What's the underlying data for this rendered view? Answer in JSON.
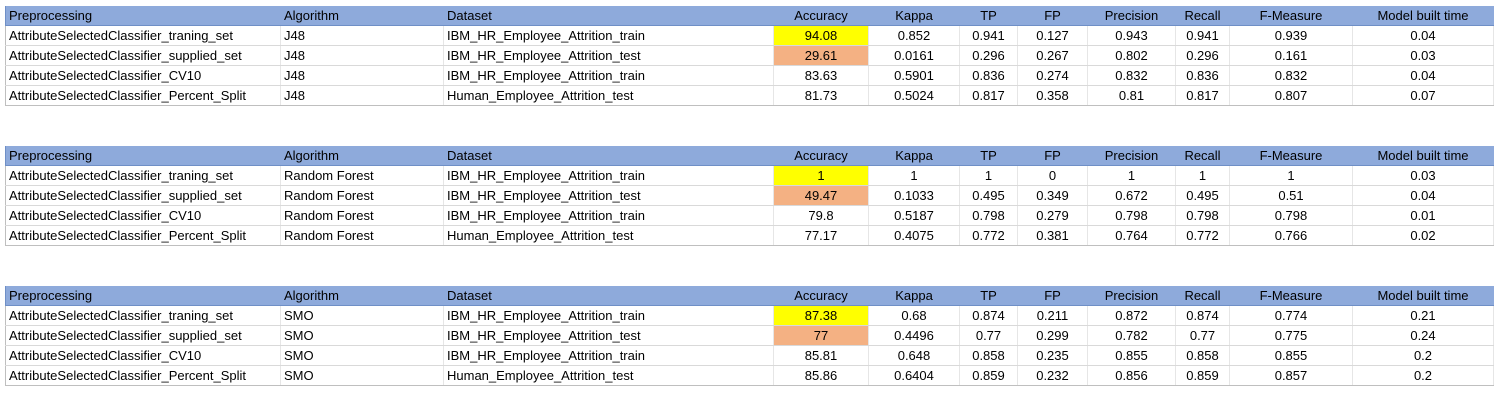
{
  "headers": {
    "preprocessing": "Preprocessing",
    "algorithm": "Algorithm",
    "dataset": "Dataset",
    "accuracy": "Accuracy",
    "kappa": "Kappa",
    "tp": "TP",
    "fp": "FP",
    "precision": "Precision",
    "recall": "Recall",
    "f_measure": "F-Measure",
    "model_built_time": "Model built time"
  },
  "colors": {
    "header_bg": "#8eaadb",
    "highlight_yellow": "#ffff00",
    "highlight_orange": "#f4b183"
  },
  "tables": [
    {
      "rows": [
        {
          "preprocessing": "AttributeSelectedClassifier_traning_set",
          "algorithm": "J48",
          "dataset": "IBM_HR_Employee_Attrition_train",
          "accuracy": "94.08",
          "accuracy_highlight": "yellow",
          "kappa": "0.852",
          "tp": "0.941",
          "fp": "0.127",
          "precision": "0.943",
          "recall": "0.941",
          "f_measure": "0.939",
          "model_built_time": "0.04"
        },
        {
          "preprocessing": "AttributeSelectedClassifier_supplied_set",
          "algorithm": "J48",
          "dataset": "IBM_HR_Employee_Attrition_test",
          "accuracy": "29.61",
          "accuracy_highlight": "orange",
          "kappa": "0.0161",
          "tp": "0.296",
          "fp": "0.267",
          "precision": "0.802",
          "recall": "0.296",
          "f_measure": "0.161",
          "model_built_time": "0.03"
        },
        {
          "preprocessing": "AttributeSelectedClassifier_CV10",
          "algorithm": "J48",
          "dataset": "IBM_HR_Employee_Attrition_train",
          "accuracy": "83.63",
          "accuracy_highlight": "none",
          "kappa": "0.5901",
          "tp": "0.836",
          "fp": "0.274",
          "precision": "0.832",
          "recall": "0.836",
          "f_measure": "0.832",
          "model_built_time": "0.04"
        },
        {
          "preprocessing": "AttributeSelectedClassifier_Percent_Split",
          "algorithm": "J48",
          "dataset": "Human_Employee_Attrition_test",
          "accuracy": "81.73",
          "accuracy_highlight": "none",
          "kappa": "0.5024",
          "tp": "0.817",
          "fp": "0.358",
          "precision": "0.81",
          "recall": "0.817",
          "f_measure": "0.807",
          "model_built_time": "0.07"
        }
      ]
    },
    {
      "rows": [
        {
          "preprocessing": "AttributeSelectedClassifier_traning_set",
          "algorithm": "Random Forest",
          "dataset": "IBM_HR_Employee_Attrition_train",
          "accuracy": "1",
          "accuracy_highlight": "yellow",
          "kappa": "1",
          "tp": "1",
          "fp": "0",
          "precision": "1",
          "recall": "1",
          "f_measure": "1",
          "model_built_time": "0.03"
        },
        {
          "preprocessing": "AttributeSelectedClassifier_supplied_set",
          "algorithm": "Random Forest",
          "dataset": "IBM_HR_Employee_Attrition_test",
          "accuracy": "49.47",
          "accuracy_highlight": "orange",
          "kappa": "0.1033",
          "tp": "0.495",
          "fp": "0.349",
          "precision": "0.672",
          "recall": "0.495",
          "f_measure": "0.51",
          "model_built_time": "0.04"
        },
        {
          "preprocessing": "AttributeSelectedClassifier_CV10",
          "algorithm": "Random Forest",
          "dataset": "IBM_HR_Employee_Attrition_train",
          "accuracy": "79.8",
          "accuracy_highlight": "none",
          "kappa": "0.5187",
          "tp": "0.798",
          "fp": "0.279",
          "precision": "0.798",
          "recall": "0.798",
          "f_measure": "0.798",
          "model_built_time": "0.01"
        },
        {
          "preprocessing": "AttributeSelectedClassifier_Percent_Split",
          "algorithm": "Random Forest",
          "dataset": "Human_Employee_Attrition_test",
          "accuracy": "77.17",
          "accuracy_highlight": "none",
          "kappa": "0.4075",
          "tp": "0.772",
          "fp": "0.381",
          "precision": "0.764",
          "recall": "0.772",
          "f_measure": "0.766",
          "model_built_time": "0.02"
        }
      ]
    },
    {
      "rows": [
        {
          "preprocessing": "AttributeSelectedClassifier_traning_set",
          "algorithm": "SMO",
          "dataset": "IBM_HR_Employee_Attrition_train",
          "accuracy": "87.38",
          "accuracy_highlight": "yellow",
          "kappa": "0.68",
          "tp": "0.874",
          "fp": "0.211",
          "precision": "0.872",
          "recall": "0.874",
          "f_measure": "0.774",
          "model_built_time": "0.21"
        },
        {
          "preprocessing": "AttributeSelectedClassifier_supplied_set",
          "algorithm": "SMO",
          "dataset": "IBM_HR_Employee_Attrition_test",
          "accuracy": "77",
          "accuracy_highlight": "orange",
          "kappa": "0.4496",
          "tp": "0.77",
          "fp": "0.299",
          "precision": "0.782",
          "recall": "0.77",
          "f_measure": "0.775",
          "model_built_time": "0.24"
        },
        {
          "preprocessing": "AttributeSelectedClassifier_CV10",
          "algorithm": "SMO",
          "dataset": "IBM_HR_Employee_Attrition_train",
          "accuracy": "85.81",
          "accuracy_highlight": "none",
          "kappa": "0.648",
          "tp": "0.858",
          "fp": "0.235",
          "precision": "0.855",
          "recall": "0.858",
          "f_measure": "0.855",
          "model_built_time": "0.2"
        },
        {
          "preprocessing": "AttributeSelectedClassifier_Percent_Split",
          "algorithm": "SMO",
          "dataset": "Human_Employee_Attrition_test",
          "accuracy": "85.86",
          "accuracy_highlight": "none",
          "kappa": "0.6404",
          "tp": "0.859",
          "fp": "0.232",
          "precision": "0.856",
          "recall": "0.859",
          "f_measure": "0.857",
          "model_built_time": "0.2"
        }
      ]
    }
  ]
}
